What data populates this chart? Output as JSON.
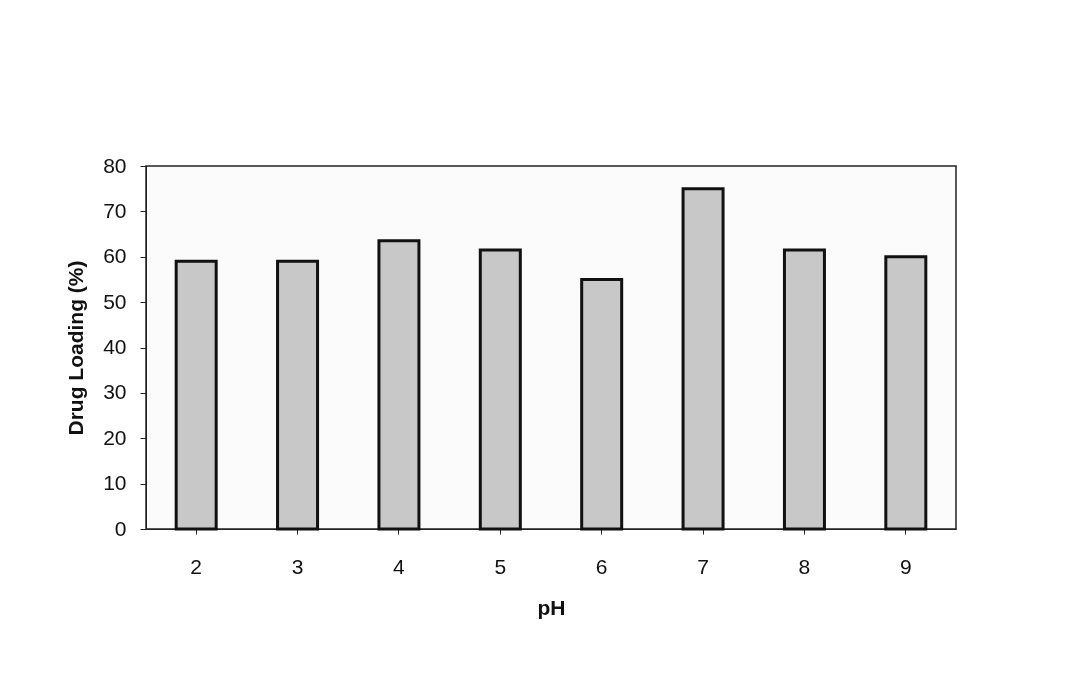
{
  "chart_data": {
    "type": "bar",
    "xlabel": "pH",
    "ylabel": "Drug Loading (%)",
    "categories": [
      "2",
      "3",
      "4",
      "5",
      "6",
      "7",
      "8",
      "9"
    ],
    "values": [
      59,
      59,
      63.5,
      61.5,
      55,
      75,
      61.5,
      60
    ],
    "color": "#c8c8c8",
    "ylim": [
      0,
      80
    ],
    "yticks": [
      0,
      10,
      20,
      30,
      40,
      50,
      60,
      70,
      80
    ],
    "grid": false
  }
}
